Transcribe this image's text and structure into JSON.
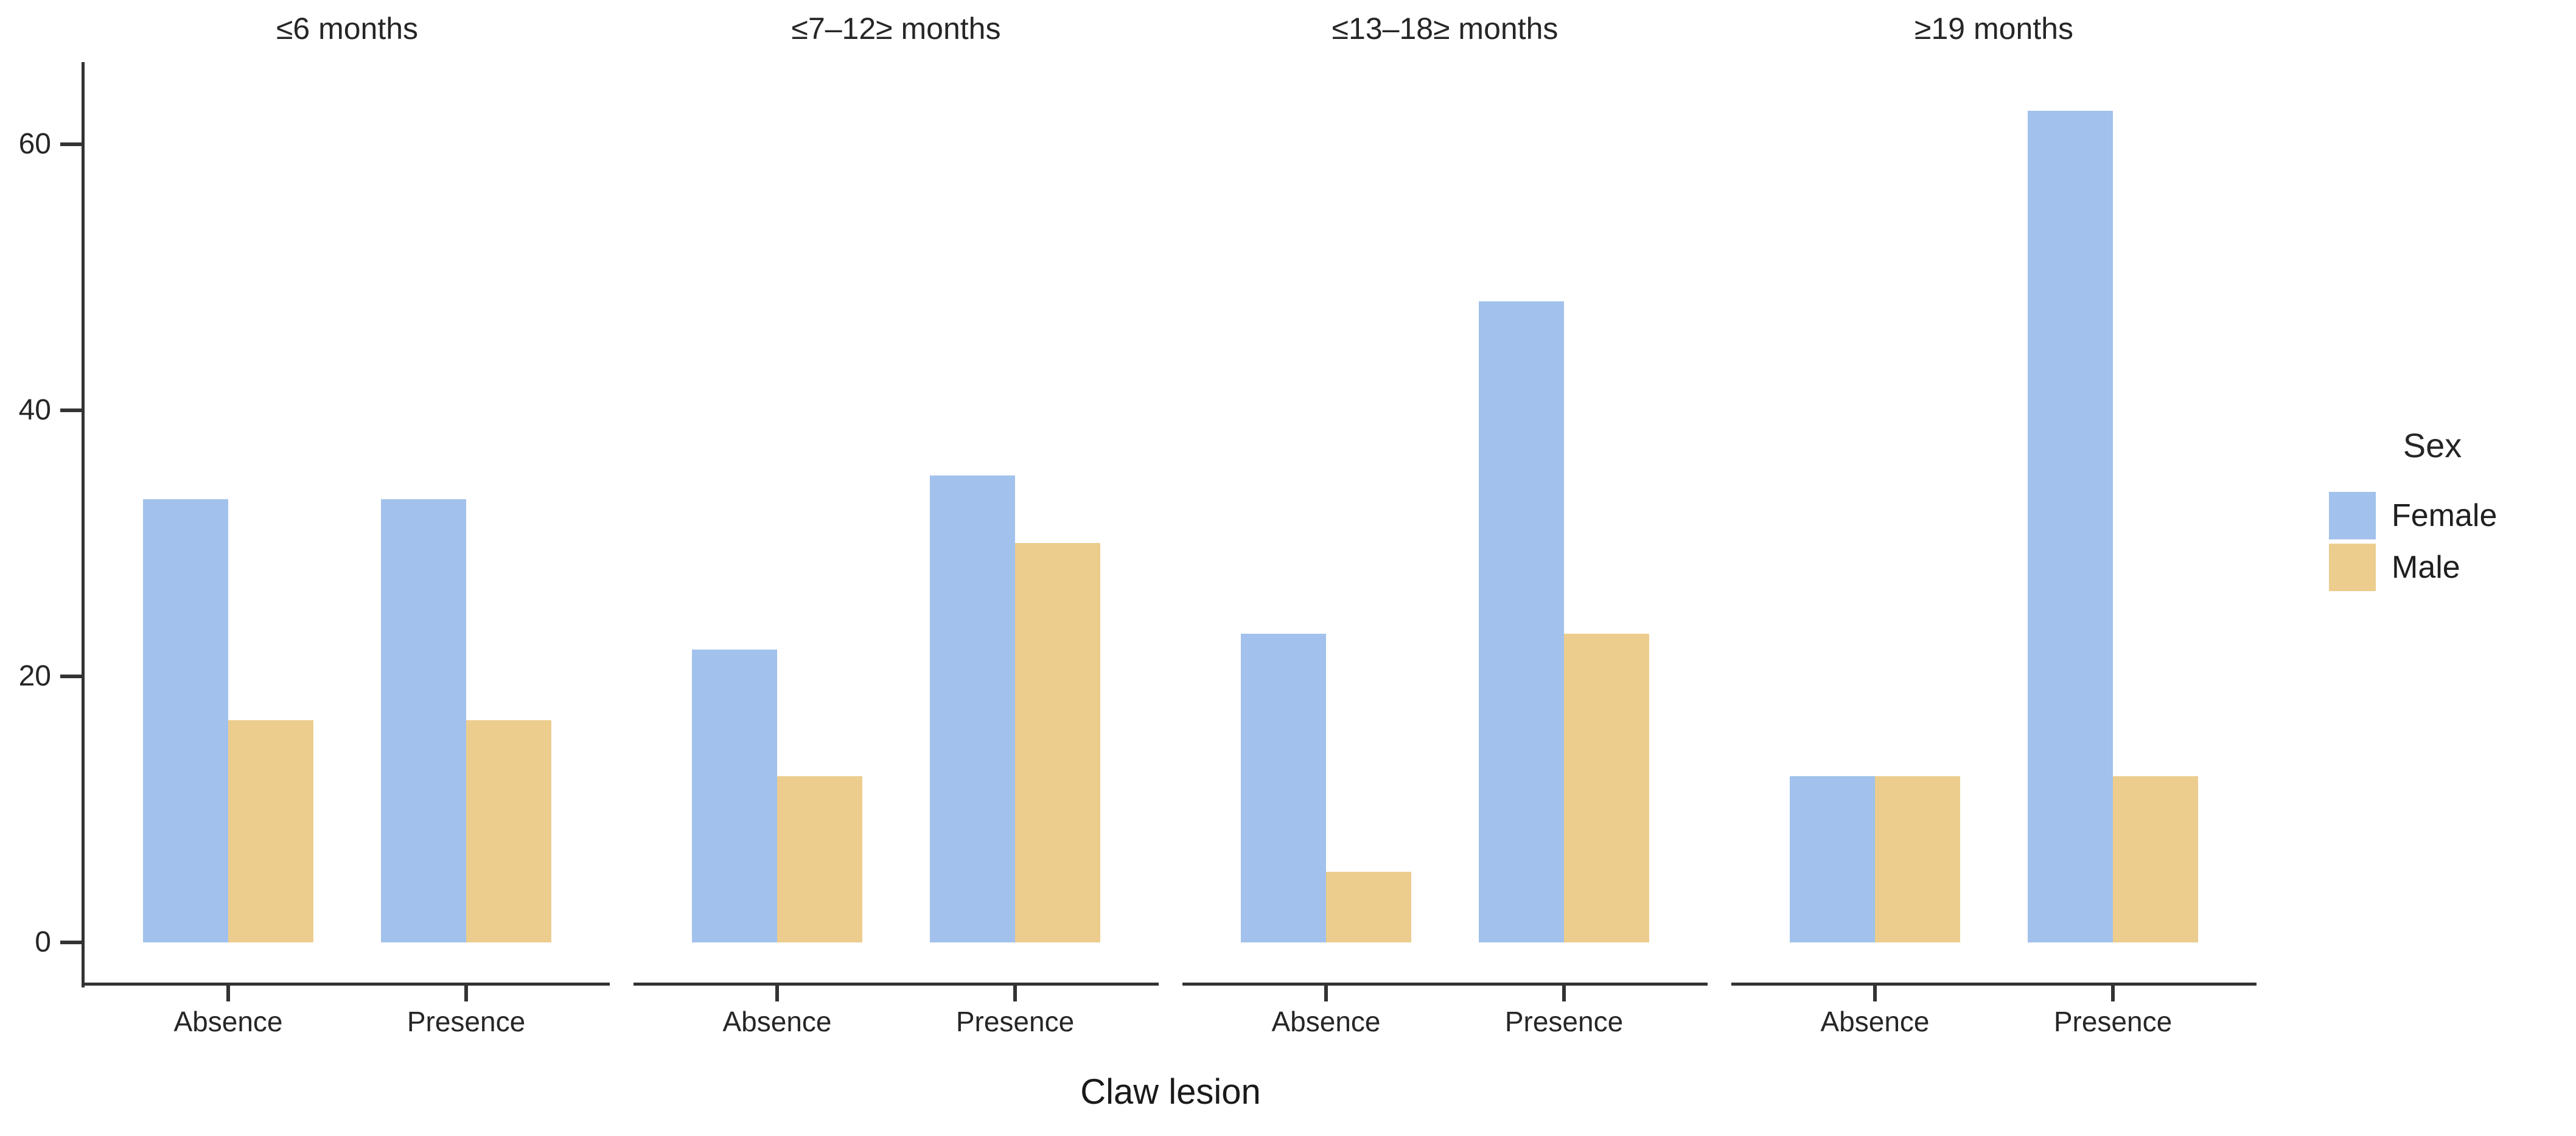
{
  "chart_data": {
    "type": "bar",
    "grouping": "dodged, faceted by age class",
    "facets": [
      {
        "label": "≤6 months",
        "categories": [
          "Absence",
          "Presence"
        ],
        "series": [
          {
            "name": "Female",
            "values": [
              33.3,
              33.3
            ]
          },
          {
            "name": "Male",
            "values": [
              16.7,
              16.7
            ]
          }
        ]
      },
      {
        "label": "≤7–12≥ months",
        "categories": [
          "Absence",
          "Presence"
        ],
        "series": [
          {
            "name": "Female",
            "values": [
              22.0,
              35.1
            ]
          },
          {
            "name": "Male",
            "values": [
              12.5,
              30.0
            ]
          }
        ]
      },
      {
        "label": "≤13–18≥ months",
        "categories": [
          "Absence",
          "Presence"
        ],
        "series": [
          {
            "name": "Female",
            "values": [
              23.2,
              48.2
            ]
          },
          {
            "name": "Male",
            "values": [
              5.3,
              23.2
            ]
          }
        ]
      },
      {
        "label": "≥19 months",
        "categories": [
          "Absence",
          "Presence"
        ],
        "series": [
          {
            "name": "Female",
            "values": [
              12.5,
              62.5
            ]
          },
          {
            "name": "Male",
            "values": [
              12.5,
              12.5
            ]
          }
        ]
      }
    ],
    "xlabel": "Claw lesion",
    "ylabel": "",
    "yticks": [
      0,
      20,
      40,
      60
    ],
    "ylim": [
      0,
      66
    ],
    "grid": false,
    "legend": {
      "title": "Sex",
      "position": "right",
      "entries": [
        {
          "label": "Female",
          "color": "#a2c1ec"
        },
        {
          "label": "Male",
          "color": "#eccd8e"
        }
      ]
    },
    "axis_color": "#333333",
    "text_color": "#262626"
  }
}
